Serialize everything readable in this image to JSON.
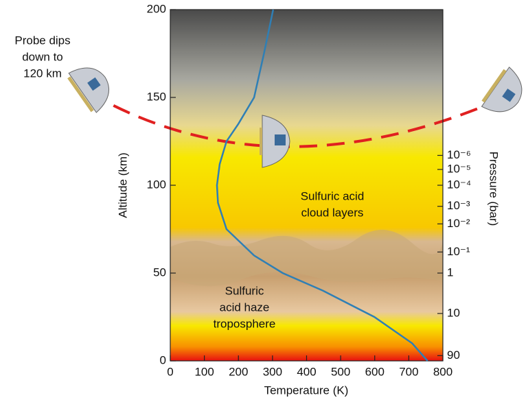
{
  "chart_data": {
    "type": "line",
    "xlabel": "Temperature (K)",
    "ylabel": "Altitude (km)",
    "y2label": "Pressure (bar)",
    "xlim": [
      0,
      800
    ],
    "xticks": [
      0,
      100,
      200,
      300,
      400,
      500,
      600,
      700,
      800
    ],
    "ylim": [
      0,
      200
    ],
    "yticks": [
      0,
      50,
      100,
      150,
      200
    ],
    "pressure_ticks": [
      {
        "value": 1e-06,
        "label": "10⁻⁶",
        "altitude": 117
      },
      {
        "value": 1e-05,
        "label": "10⁻⁵",
        "altitude": 109
      },
      {
        "value": 0.0001,
        "label": "10⁻⁴",
        "altitude": 100
      },
      {
        "value": 0.001,
        "label": "10⁻³",
        "altitude": 88
      },
      {
        "value": 0.01,
        "label": "10⁻²",
        "altitude": 78
      },
      {
        "value": 0.1,
        "label": "10⁻¹",
        "altitude": 62
      },
      {
        "value": 1,
        "label": "1",
        "altitude": 50
      },
      {
        "value": 10,
        "label": "10",
        "altitude": 27
      },
      {
        "value": 90,
        "label": "90",
        "altitude": 3
      }
    ],
    "series": [
      {
        "color": "#2f7fb5",
        "x": [
          302,
          275,
          246,
          200,
          165,
          145,
          137,
          140,
          165,
          246,
          330,
          448,
          599,
          710,
          755
        ],
        "values": [
          200,
          175,
          150,
          135,
          125,
          112,
          100,
          90,
          75,
          60,
          50,
          40,
          25,
          10,
          0
        ]
      }
    ],
    "annotations": [
      {
        "lines": [
          "Probe dips",
          "down to",
          "120 km"
        ]
      },
      {
        "lines": [
          "Sulfuric acid",
          "cloud layers"
        ]
      },
      {
        "lines": [
          "Sulfuric",
          "acid haze",
          "troposphere"
        ]
      }
    ]
  }
}
